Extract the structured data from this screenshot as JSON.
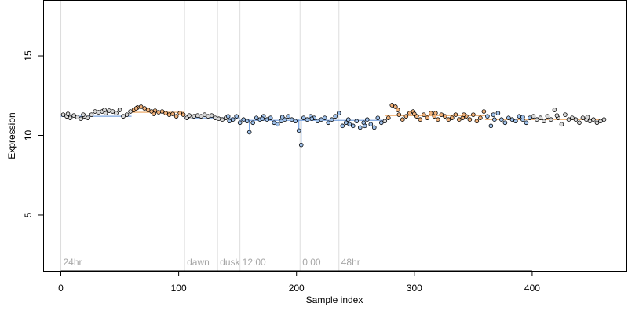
{
  "colors": {
    "background": "#ffffff",
    "axis": "#000000",
    "marker_line": "#dddddd",
    "marker_text": "#a6a6a6",
    "point_fill_default": "#d8d8d8",
    "point_fill_orange": "#f2b27a",
    "point_fill_blue": "#9ec0ea",
    "point_stroke": "#000000",
    "segment_blue": "#5b8fd9",
    "segment_orange": "#e58a2e"
  },
  "chart_data": {
    "type": "scatter",
    "title": "",
    "xlabel": "Sample index",
    "ylabel": "Expression",
    "xlim": [
      -15,
      480
    ],
    "ylim": [
      1.5,
      18.5
    ],
    "xticks": [
      0,
      100,
      200,
      300,
      400
    ],
    "yticks": [
      5,
      10,
      15
    ],
    "grid": false,
    "legend": "none",
    "markers": [
      {
        "x": 0,
        "label": "24hr"
      },
      {
        "x": 105,
        "label": "dawn"
      },
      {
        "x": 133,
        "label": "dusk"
      },
      {
        "x": 152,
        "label": "12:00"
      },
      {
        "x": 203,
        "label": "0:00"
      },
      {
        "x": 236,
        "label": "48hr"
      }
    ],
    "baseline_segments": [
      {
        "x1": 0,
        "x2": 60,
        "y": 11.2,
        "color": "blue"
      },
      {
        "x1": 60,
        "x2": 105,
        "y": 11.45,
        "color": "orange"
      },
      {
        "x1": 105,
        "x2": 152,
        "y": 11.1,
        "color": "blue"
      },
      {
        "x1": 152,
        "x2": 275,
        "y": 10.95,
        "color": "blue"
      },
      {
        "x1": 275,
        "x2": 360,
        "y": 11.25,
        "color": "orange"
      },
      {
        "x1": 360,
        "x2": 462,
        "y": 11.0,
        "color": "orange"
      }
    ],
    "series": [
      {
        "values": [
          [
            2,
            11.3
          ],
          [
            5,
            11.2
          ],
          [
            8,
            11.1
          ],
          [
            11,
            11.25
          ],
          [
            14,
            11.15
          ],
          [
            17,
            11.05
          ],
          [
            20,
            11.2
          ],
          [
            23,
            11.1
          ],
          [
            26,
            11.3
          ],
          [
            29,
            11.5
          ],
          [
            32,
            11.45
          ],
          [
            35,
            11.5
          ],
          [
            38,
            11.4
          ],
          [
            41,
            11.55
          ],
          [
            44,
            11.5
          ],
          [
            47,
            11.4
          ],
          [
            50,
            11.6
          ],
          [
            53,
            11.2
          ],
          [
            56,
            11.3
          ],
          [
            59,
            11.5
          ],
          [
            62,
            11.6
          ],
          [
            65,
            11.75
          ],
          [
            68,
            11.8
          ],
          [
            71,
            11.7
          ],
          [
            74,
            11.6
          ],
          [
            77,
            11.5
          ],
          [
            80,
            11.55
          ],
          [
            83,
            11.45
          ],
          [
            86,
            11.5
          ],
          [
            89,
            11.4
          ],
          [
            92,
            11.3
          ],
          [
            95,
            11.35
          ],
          [
            98,
            11.2
          ],
          [
            101,
            11.4
          ],
          [
            104,
            11.3
          ],
          [
            107,
            11.1
          ],
          [
            110,
            11.15
          ],
          [
            113,
            11.2
          ],
          [
            116,
            11.25
          ],
          [
            119,
            11.2
          ],
          [
            122,
            11.3
          ],
          [
            125,
            11.2
          ],
          [
            128,
            11.25
          ],
          [
            131,
            11.1
          ],
          [
            134,
            11.05
          ],
          [
            137,
            11.0
          ],
          [
            140,
            11.1
          ],
          [
            143,
            10.9
          ],
          [
            146,
            11.0
          ],
          [
            149,
            11.2
          ],
          [
            152,
            10.8
          ],
          [
            155,
            11.0
          ],
          [
            158,
            10.9
          ],
          [
            160,
            10.2
          ],
          [
            163,
            10.8
          ],
          [
            166,
            11.1
          ],
          [
            169,
            11.0
          ],
          [
            172,
            11.2
          ],
          [
            175,
            11.0
          ],
          [
            178,
            11.1
          ],
          [
            181,
            10.8
          ],
          [
            184,
            10.7
          ],
          [
            187,
            10.9
          ],
          [
            190,
            11.0
          ],
          [
            193,
            11.2
          ],
          [
            196,
            11.0
          ],
          [
            199,
            10.9
          ],
          [
            202,
            10.3
          ],
          [
            204,
            9.4
          ],
          [
            206,
            11.1
          ],
          [
            209,
            11.0
          ],
          [
            212,
            11.2
          ],
          [
            215,
            11.1
          ],
          [
            218,
            10.9
          ],
          [
            221,
            11.0
          ],
          [
            224,
            11.1
          ],
          [
            227,
            10.8
          ],
          [
            230,
            11.0
          ],
          [
            233,
            11.2
          ],
          [
            236,
            11.4
          ],
          [
            239,
            10.6
          ],
          [
            242,
            10.8
          ],
          [
            245,
            10.7
          ],
          [
            248,
            10.6
          ],
          [
            251,
            10.9
          ],
          [
            254,
            10.5
          ],
          [
            257,
            10.8
          ],
          [
            260,
            11.0
          ],
          [
            263,
            10.7
          ],
          [
            266,
            10.5
          ],
          [
            269,
            11.1
          ],
          [
            272,
            10.8
          ],
          [
            275,
            10.9
          ],
          [
            278,
            11.1
          ],
          [
            281,
            11.9
          ],
          [
            284,
            11.8
          ],
          [
            287,
            11.3
          ],
          [
            290,
            11.0
          ],
          [
            293,
            11.2
          ],
          [
            296,
            11.4
          ],
          [
            299,
            11.5
          ],
          [
            302,
            11.2
          ],
          [
            305,
            11.0
          ],
          [
            308,
            11.3
          ],
          [
            311,
            11.1
          ],
          [
            314,
            11.4
          ],
          [
            317,
            11.2
          ],
          [
            320,
            11.0
          ],
          [
            323,
            11.3
          ],
          [
            326,
            11.2
          ],
          [
            329,
            11.0
          ],
          [
            332,
            11.1
          ],
          [
            335,
            11.3
          ],
          [
            338,
            11.0
          ],
          [
            341,
            11.1
          ],
          [
            344,
            11.2
          ],
          [
            347,
            11.0
          ],
          [
            350,
            11.3
          ],
          [
            353,
            10.9
          ],
          [
            356,
            11.1
          ],
          [
            359,
            11.5
          ],
          [
            362,
            11.2
          ],
          [
            365,
            10.6
          ],
          [
            368,
            11.0
          ],
          [
            371,
            11.4
          ],
          [
            374,
            11.0
          ],
          [
            377,
            10.8
          ],
          [
            380,
            11.1
          ],
          [
            383,
            11.0
          ],
          [
            386,
            10.9
          ],
          [
            389,
            11.2
          ],
          [
            392,
            11.0
          ],
          [
            395,
            10.8
          ],
          [
            398,
            11.1
          ],
          [
            401,
            11.2
          ],
          [
            404,
            11.0
          ],
          [
            407,
            11.1
          ],
          [
            410,
            10.9
          ],
          [
            413,
            11.2
          ],
          [
            416,
            11.0
          ],
          [
            419,
            11.6
          ],
          [
            422,
            11.1
          ],
          [
            425,
            10.7
          ],
          [
            428,
            11.3
          ],
          [
            431,
            11.0
          ],
          [
            434,
            11.1
          ],
          [
            437,
            11.0
          ],
          [
            440,
            10.8
          ],
          [
            443,
            11.1
          ],
          [
            446,
            11.0
          ],
          [
            449,
            10.9
          ],
          [
            452,
            11.0
          ],
          [
            455,
            10.8
          ],
          [
            458,
            10.9
          ],
          [
            461,
            11.0
          ],
          [
            6,
            11.35
          ],
          [
            19,
            11.3
          ],
          [
            37,
            11.6
          ],
          [
            64,
            11.7
          ],
          [
            79,
            11.35
          ],
          [
            109,
            11.25
          ],
          [
            142,
            11.2
          ],
          [
            171,
            11.05
          ],
          [
            188,
            11.15
          ],
          [
            213,
            11.05
          ],
          [
            244,
            11.0
          ],
          [
            258,
            10.6
          ],
          [
            286,
            11.6
          ],
          [
            300,
            11.35
          ],
          [
            318,
            11.4
          ],
          [
            342,
            11.3
          ],
          [
            367,
            11.3
          ],
          [
            392,
            11.15
          ],
          [
            421,
            11.25
          ],
          [
            447,
            11.15
          ]
        ]
      }
    ]
  }
}
